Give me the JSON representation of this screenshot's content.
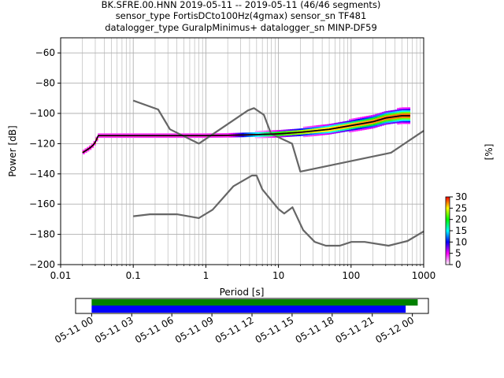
{
  "chart_data": [
    {
      "type": "heatmap",
      "title_lines": [
        "BK.SFRE.00.HNN   2019-05-11 -- 2019-05-11  (46/46 segments)",
        "sensor_type FortisDCto100Hz(4gmax) sensor_sn TF481",
        "datalogger_type GuralpMinimus+ datalogger_sn MINP-DF59"
      ],
      "xlabel": "Period [s]",
      "ylabel": "Power [dB]",
      "x_scale": "log",
      "xlim": [
        0.01,
        1000
      ],
      "ylim": [
        -200,
        -50
      ],
      "x_ticks": [
        0.01,
        0.1,
        1,
        10,
        100,
        1000
      ],
      "x_tick_labels": [
        "0.01",
        "0.1",
        "1",
        "10",
        "100",
        "1000"
      ],
      "y_ticks": [
        -200,
        -180,
        -160,
        -140,
        -120,
        -100,
        -80,
        -60
      ],
      "y_tick_labels": [
        "−200",
        "−180",
        "−160",
        "−140",
        "−120",
        "−100",
        "−80",
        "−60"
      ],
      "grid": true,
      "noise_models": [
        {
          "role": "high",
          "x": [
            0.1,
            0.22,
            0.32,
            0.8,
            3.8,
            4.6,
            6.3,
            7.9,
            15.4,
            20,
            354.8
          ],
          "y": [
            -91.5,
            -97.4,
            -110.5,
            -120,
            -98,
            -96.5,
            -101,
            -113.5,
            -120,
            -138.5,
            -126
          ],
          "extends_to_edge_y": -111.5
        },
        {
          "role": "low",
          "x": [
            0.1,
            0.17,
            0.4,
            0.8,
            1.24,
            2.4,
            4.3,
            5,
            6,
            10,
            12,
            15.6,
            21.9,
            31.6,
            45,
            70,
            101,
            154,
            328,
            600,
            1000
          ],
          "y": [
            -168,
            -166.7,
            -166.7,
            -169.2,
            -163.7,
            -148.1,
            -141.1,
            -141.1,
            -150.2,
            -163.3,
            -166.2,
            -162.1,
            -177.2,
            -185,
            -187.5,
            -187.5,
            -185,
            -185,
            -187.5,
            -184.4,
            -178
          ]
        }
      ],
      "mode_line": {
        "x": [
          0.02,
          0.025,
          0.028,
          0.03,
          0.033,
          0.05,
          0.1,
          0.5,
          1,
          2,
          5,
          10,
          20,
          50,
          100,
          200,
          300,
          500,
          650
        ],
        "y": [
          -126,
          -123,
          -121,
          -119,
          -114.7,
          -114.7,
          -114.7,
          -114.7,
          -114.7,
          -114.5,
          -114,
          -113.5,
          -112.5,
          -110.5,
          -108,
          -105.5,
          -103,
          -101.5,
          -101.5
        ]
      },
      "colorbar": {
        "label": "[%]",
        "ticks": [
          0,
          5,
          10,
          15,
          20,
          25,
          30
        ],
        "tick_labels": [
          "0",
          "5",
          "10",
          "15",
          "20",
          "25",
          "30"
        ],
        "range": [
          0,
          30
        ],
        "colormap": [
          "#ffffff",
          "#ff00ff",
          "#0000ff",
          "#00ffff",
          "#00ff00",
          "#ffff00",
          "#ff0000"
        ]
      }
    },
    {
      "type": "bar",
      "title": "",
      "x_tick_labels": [
        "05-11 00",
        "05-11 03",
        "05-11 06",
        "05-11 09",
        "05-11 12",
        "05-11 15",
        "05-11 18",
        "05-11 21",
        "05-12 00"
      ],
      "x_tick_hours": [
        0,
        3,
        6,
        9,
        12,
        15,
        18,
        21,
        24
      ],
      "xlim_hours": [
        -1.2,
        25.2
      ],
      "series": [
        {
          "role": "data_available",
          "start_hour": 0,
          "end_hour": 24.4,
          "color": "#008000"
        },
        {
          "role": "psd_segments",
          "start_hour": 0,
          "end_hour": 23.5,
          "color": "#0000ff"
        }
      ]
    }
  ],
  "colors": {
    "noise_model": "#666666",
    "mode_line": "#000000",
    "grid": "#b0b0b0",
    "axes": "#000000"
  }
}
